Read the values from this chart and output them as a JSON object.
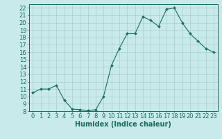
{
  "x": [
    0,
    1,
    2,
    3,
    4,
    5,
    6,
    7,
    8,
    9,
    10,
    11,
    12,
    13,
    14,
    15,
    16,
    17,
    18,
    19,
    20,
    21,
    22,
    23
  ],
  "y": [
    10.5,
    11.0,
    11.0,
    11.5,
    9.5,
    8.3,
    8.2,
    8.1,
    8.2,
    10.0,
    14.2,
    16.5,
    18.5,
    18.5,
    20.8,
    20.3,
    19.5,
    21.8,
    22.0,
    20.0,
    18.5,
    17.5,
    16.5,
    16.0
  ],
  "line_color": "#1a6b5a",
  "marker": "D",
  "marker_size": 2,
  "bg_color": "#c8eaea",
  "grid_color": "#aacccc",
  "xlabel": "Humidex (Indice chaleur)",
  "xlim": [
    -0.5,
    23.5
  ],
  "ylim": [
    8,
    22.5
  ],
  "yticks": [
    8,
    9,
    10,
    11,
    12,
    13,
    14,
    15,
    16,
    17,
    18,
    19,
    20,
    21,
    22
  ],
  "xticks": [
    0,
    1,
    2,
    3,
    4,
    5,
    6,
    7,
    8,
    9,
    10,
    11,
    12,
    13,
    14,
    15,
    16,
    17,
    18,
    19,
    20,
    21,
    22,
    23
  ],
  "tick_color": "#1a6b5a",
  "label_fontsize": 6,
  "xlabel_fontsize": 7
}
